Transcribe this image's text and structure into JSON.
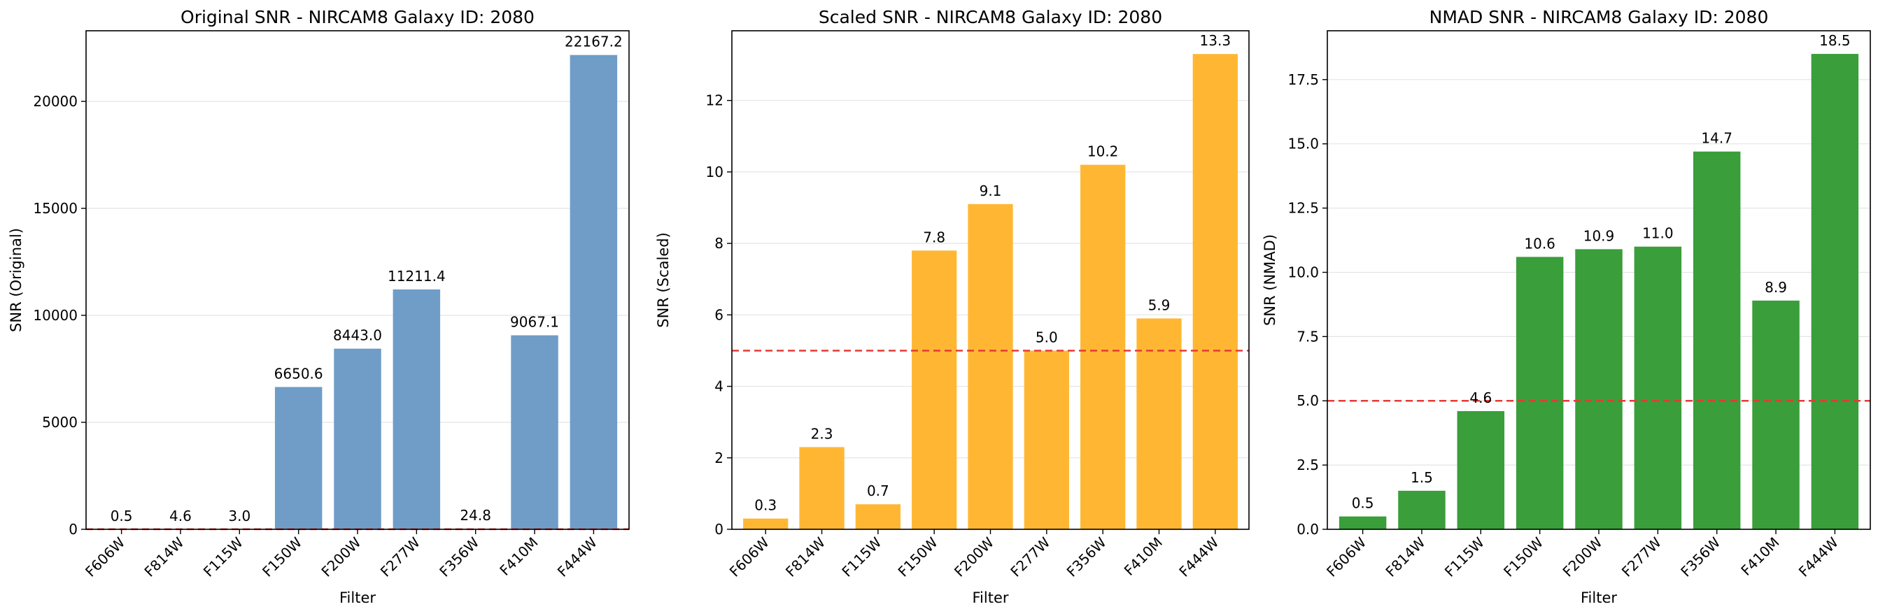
{
  "chart_data": [
    {
      "type": "bar",
      "title": "Original SNR - NIRCAM8 Galaxy ID: 2080",
      "xlabel": "Filter",
      "ylabel": "SNR (Original)",
      "categories": [
        "F606W",
        "F814W",
        "F115W",
        "F150W",
        "F200W",
        "F277W",
        "F356W",
        "F410M",
        "F444W"
      ],
      "values": [
        0.5,
        4.6,
        3.0,
        6650.6,
        8443.0,
        11211.4,
        24.8,
        9067.1,
        22167.2
      ],
      "value_labels": [
        "0.5",
        "4.6",
        "3.0",
        "6650.6",
        "8443.0",
        "11211.4",
        "24.8",
        "9067.1",
        "22167.2"
      ],
      "ylim": [
        0,
        23300
      ],
      "yticks": [
        0,
        5000,
        10000,
        15000,
        20000
      ],
      "ytick_labels": [
        "0",
        "5000",
        "10000",
        "15000",
        "20000"
      ],
      "threshold": 5,
      "bar_color": "#6f9dc8",
      "grid": "y"
    },
    {
      "type": "bar",
      "title": "Scaled SNR - NIRCAM8 Galaxy ID: 2080",
      "xlabel": "Filter",
      "ylabel": "SNR (Scaled)",
      "categories": [
        "F606W",
        "F814W",
        "F115W",
        "F150W",
        "F200W",
        "F277W",
        "F356W",
        "F410M",
        "F444W"
      ],
      "values": [
        0.3,
        2.3,
        0.7,
        7.8,
        9.1,
        5.0,
        10.2,
        5.9,
        13.3
      ],
      "value_labels": [
        "0.3",
        "2.3",
        "0.7",
        "7.8",
        "9.1",
        "5.0",
        "10.2",
        "5.9",
        "13.3"
      ],
      "ylim": [
        0,
        13.95
      ],
      "yticks": [
        0,
        2,
        4,
        6,
        8,
        10,
        12
      ],
      "ytick_labels": [
        "0",
        "2",
        "4",
        "6",
        "8",
        "10",
        "12"
      ],
      "threshold": 5,
      "bar_color": "#ffb733",
      "grid": "y"
    },
    {
      "type": "bar",
      "title": "NMAD SNR - NIRCAM8 Galaxy ID: 2080",
      "xlabel": "Filter",
      "ylabel": "SNR (NMAD)",
      "categories": [
        "F606W",
        "F814W",
        "F115W",
        "F150W",
        "F200W",
        "F277W",
        "F356W",
        "F410M",
        "F444W"
      ],
      "values": [
        0.5,
        1.5,
        4.6,
        10.6,
        10.9,
        11.0,
        14.7,
        8.9,
        18.5
      ],
      "value_labels": [
        "0.5",
        "1.5",
        "4.6",
        "10.6",
        "10.9",
        "11.0",
        "14.7",
        "8.9",
        "18.5"
      ],
      "ylim": [
        0,
        19.4
      ],
      "yticks": [
        0,
        2.5,
        5.0,
        7.5,
        10.0,
        12.5,
        15.0,
        17.5
      ],
      "ytick_labels": [
        "0.0",
        "2.5",
        "5.0",
        "7.5",
        "10.0",
        "12.5",
        "15.0",
        "17.5"
      ],
      "threshold": 5,
      "bar_color": "#3a9e3a",
      "grid": "y"
    }
  ],
  "colors": {
    "threshold_line": "#e53935",
    "grid": "#e4e4e4",
    "axes": "#000000"
  }
}
